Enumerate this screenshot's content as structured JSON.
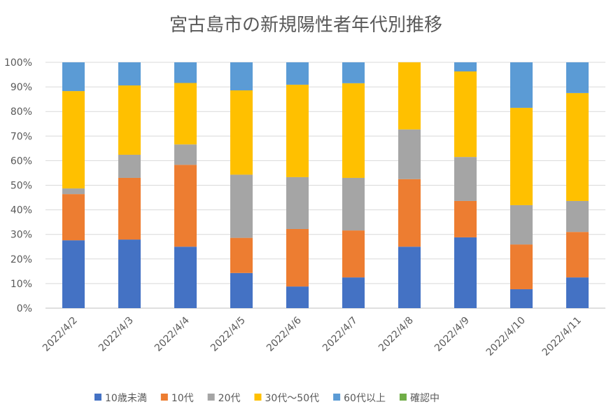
{
  "chart_data": {
    "type": "bar",
    "stacked": "percent",
    "title": "宮古島市の新規陽性者年代別推移",
    "xlabel": "",
    "ylabel": "",
    "ylim": [
      0,
      100
    ],
    "yticks": [
      "0%",
      "10%",
      "20%",
      "30%",
      "40%",
      "50%",
      "60%",
      "70%",
      "80%",
      "90%",
      "100%"
    ],
    "grid": true,
    "legend_position": "bottom",
    "categories": [
      "2022/4/2",
      "2022/4/3",
      "2022/4/4",
      "2022/4/5",
      "2022/4/6",
      "2022/4/7",
      "2022/4/8",
      "2022/4/9",
      "2022/4/10",
      "2022/4/11"
    ],
    "series": [
      {
        "name": "10歳未満",
        "color": "#4472C4",
        "values": [
          27.6,
          27.9,
          25.0,
          14.3,
          8.8,
          12.5,
          25.0,
          28.8,
          7.7,
          12.5
        ]
      },
      {
        "name": "10代",
        "color": "#ED7D31",
        "values": [
          18.8,
          25.1,
          33.3,
          14.3,
          23.4,
          19.1,
          27.5,
          14.8,
          18.2,
          18.5
        ]
      },
      {
        "name": "20代",
        "color": "#A5A5A5",
        "values": [
          2.3,
          9.4,
          8.3,
          25.7,
          21.1,
          21.4,
          20.2,
          17.9,
          16.0,
          12.6
        ]
      },
      {
        "name": "30代～50代",
        "color": "#FFC000",
        "values": [
          39.6,
          28.2,
          25.0,
          34.3,
          37.6,
          38.5,
          27.3,
          34.8,
          39.6,
          43.9
        ]
      },
      {
        "name": "60代以上",
        "color": "#5B9BD5",
        "values": [
          11.7,
          9.4,
          8.4,
          11.4,
          9.1,
          8.5,
          0.0,
          3.7,
          18.5,
          12.5
        ]
      },
      {
        "name": "確認中",
        "color": "#70AD47",
        "values": [
          0,
          0,
          0,
          0,
          0,
          0,
          0,
          0,
          0,
          0
        ]
      }
    ]
  }
}
